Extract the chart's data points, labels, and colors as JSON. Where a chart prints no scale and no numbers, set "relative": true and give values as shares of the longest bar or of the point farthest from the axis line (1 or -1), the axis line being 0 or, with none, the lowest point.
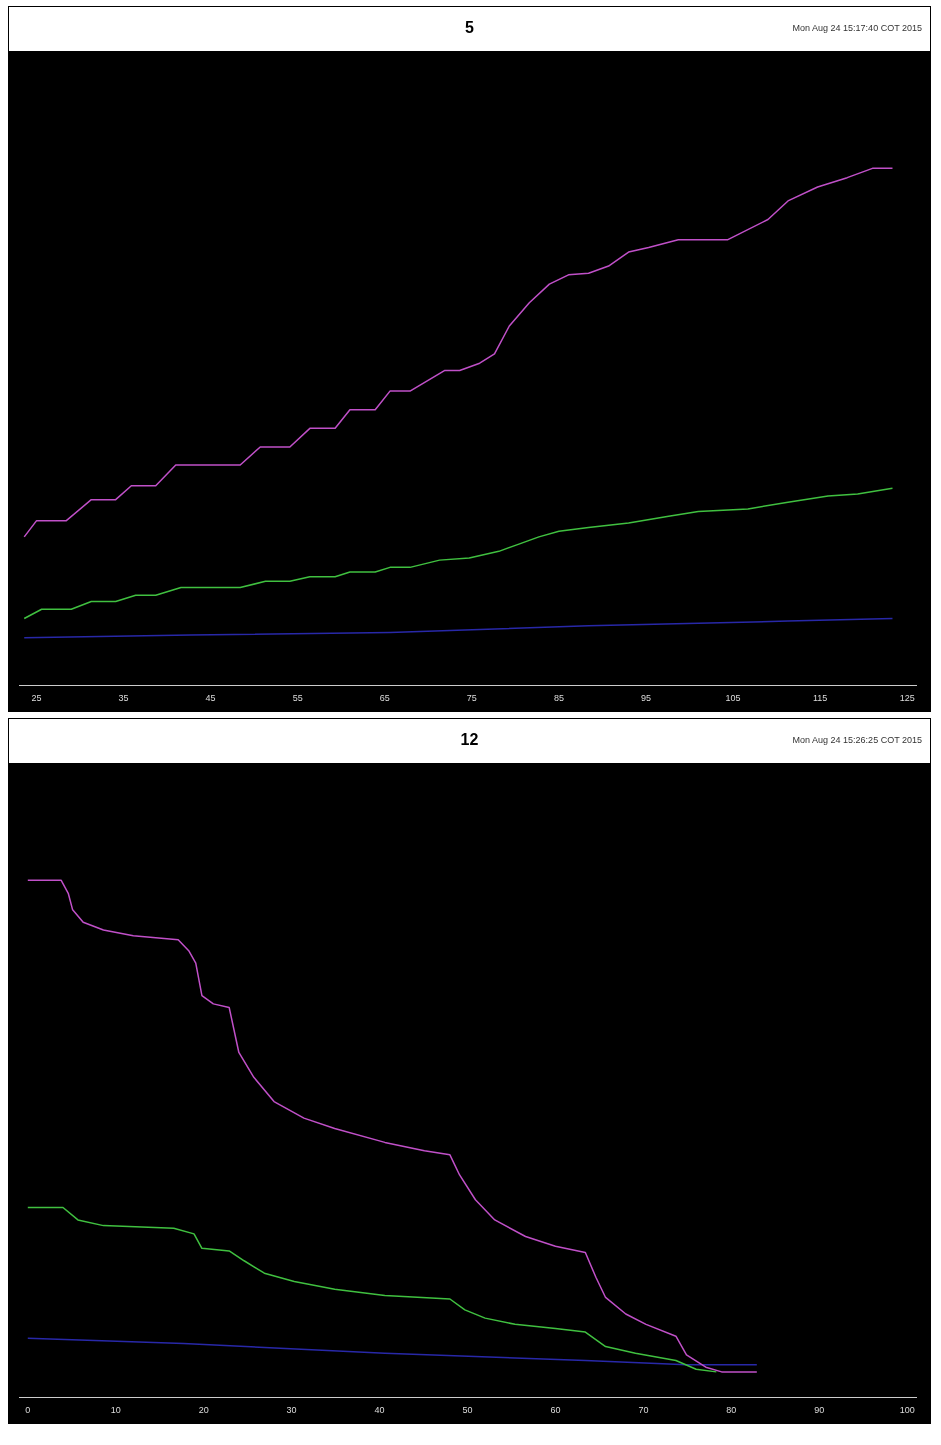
{
  "chart_data": [
    {
      "type": "line",
      "title": "5",
      "annotations": [
        "Mon Aug 24 15:17:40 COT 2015"
      ],
      "relative": true,
      "xlim": [
        23,
        126
      ],
      "xticks": [
        25,
        35,
        45,
        55,
        65,
        75,
        85,
        95,
        105,
        115,
        125
      ],
      "grid": false,
      "legend": false,
      "marker": "none",
      "line_style": "solid",
      "series": [
        {
          "color": "#c050c8",
          "x": [
            23.6,
            25,
            28.4,
            31.3,
            34.1,
            35.9,
            38.7,
            41,
            48.4,
            50.7,
            54.1,
            56.4,
            59.3,
            61,
            63.9,
            65.6,
            67.9,
            71.9,
            73.6,
            75.9,
            77.6,
            79.3,
            81.6,
            83.9,
            86.1,
            88.4,
            90.7,
            93,
            95.3,
            98.7,
            104.4,
            109,
            111.3,
            114.7,
            118.1,
            121,
            123.3
          ],
          "values": [
            0.287,
            0.318,
            0.318,
            0.359,
            0.359,
            0.386,
            0.386,
            0.426,
            0.426,
            0.461,
            0.461,
            0.497,
            0.497,
            0.533,
            0.533,
            0.569,
            0.569,
            0.609,
            0.609,
            0.623,
            0.641,
            0.695,
            0.74,
            0.776,
            0.794,
            0.797,
            0.811,
            0.838,
            0.847,
            0.862,
            0.862,
            0.901,
            0.937,
            0.964,
            0.982,
            1,
            1
          ]
        },
        {
          "color": "#40c040",
          "x": [
            23.6,
            25.6,
            29,
            31.3,
            34.1,
            36.4,
            38.7,
            41.6,
            48.4,
            51.3,
            54.1,
            56.4,
            59.3,
            61,
            63.9,
            65.6,
            67.9,
            71.3,
            74.7,
            78.1,
            80.4,
            82.7,
            85,
            88.4,
            93,
            97.6,
            101,
            106.7,
            111.3,
            115.9,
            119.3,
            123.3
          ],
          "values": [
            0.129,
            0.147,
            0.147,
            0.162,
            0.162,
            0.174,
            0.174,
            0.189,
            0.189,
            0.201,
            0.201,
            0.21,
            0.21,
            0.219,
            0.219,
            0.228,
            0.228,
            0.242,
            0.246,
            0.259,
            0.273,
            0.287,
            0.298,
            0.305,
            0.314,
            0.327,
            0.336,
            0.341,
            0.354,
            0.366,
            0.37,
            0.381
          ]
        },
        {
          "color": "#2828a8",
          "x": [
            23.6,
            42.7,
            65.6,
            88.4,
            111.3,
            123.3
          ],
          "values": [
            0.092,
            0.097,
            0.102,
            0.115,
            0.124,
            0.129
          ]
        }
      ]
    },
    {
      "type": "line",
      "title": "12",
      "annotations": [
        "Mon Aug 24 15:26:25 COT 2015"
      ],
      "relative": true,
      "xlim": [
        -1,
        101
      ],
      "xticks": [
        0,
        10,
        20,
        30,
        40,
        50,
        60,
        70,
        80,
        90,
        100
      ],
      "grid": false,
      "legend": false,
      "marker": "none",
      "line_style": "solid",
      "series": [
        {
          "color": "#c050c8",
          "x": [
            0,
            3.8,
            4.6,
            5.1,
            6.3,
            8.6,
            12,
            17.1,
            18.3,
            19.1,
            19.8,
            21.1,
            22.9,
            24,
            25.7,
            28,
            31.4,
            34.9,
            40.6,
            45.1,
            48,
            49.1,
            50.9,
            53.1,
            56.6,
            60,
            63.4,
            64.6,
            65.7,
            68,
            70.3,
            73.7,
            74.9,
            77.1,
            78.9,
            82.9
          ],
          "values": [
            1,
            1,
            0.975,
            0.943,
            0.919,
            0.904,
            0.893,
            0.885,
            0.864,
            0.84,
            0.777,
            0.761,
            0.754,
            0.667,
            0.619,
            0.572,
            0.54,
            0.52,
            0.493,
            0.477,
            0.469,
            0.43,
            0.382,
            0.343,
            0.311,
            0.292,
            0.28,
            0.232,
            0.193,
            0.161,
            0.141,
            0.118,
            0.082,
            0.058,
            0.049,
            0.049
          ]
        },
        {
          "color": "#40c040",
          "x": [
            0,
            4,
            5.7,
            8.6,
            16.6,
            18.9,
            19.8,
            22.9,
            24.6,
            26.9,
            30.3,
            34.9,
            40.6,
            48,
            49.7,
            52,
            55.4,
            60,
            63.4,
            65.7,
            69.1,
            73.7,
            76,
            78.3
          ],
          "values": [
            0.367,
            0.367,
            0.343,
            0.332,
            0.327,
            0.316,
            0.288,
            0.283,
            0.264,
            0.24,
            0.224,
            0.209,
            0.197,
            0.19,
            0.169,
            0.153,
            0.141,
            0.133,
            0.126,
            0.098,
            0.085,
            0.071,
            0.054,
            0.049
          ]
        },
        {
          "color": "#2828a8",
          "x": [
            0,
            17.7,
            40.6,
            63.4,
            74.9,
            82.9
          ],
          "values": [
            0.114,
            0.104,
            0.085,
            0.071,
            0.063,
            0.063
          ]
        }
      ]
    }
  ]
}
